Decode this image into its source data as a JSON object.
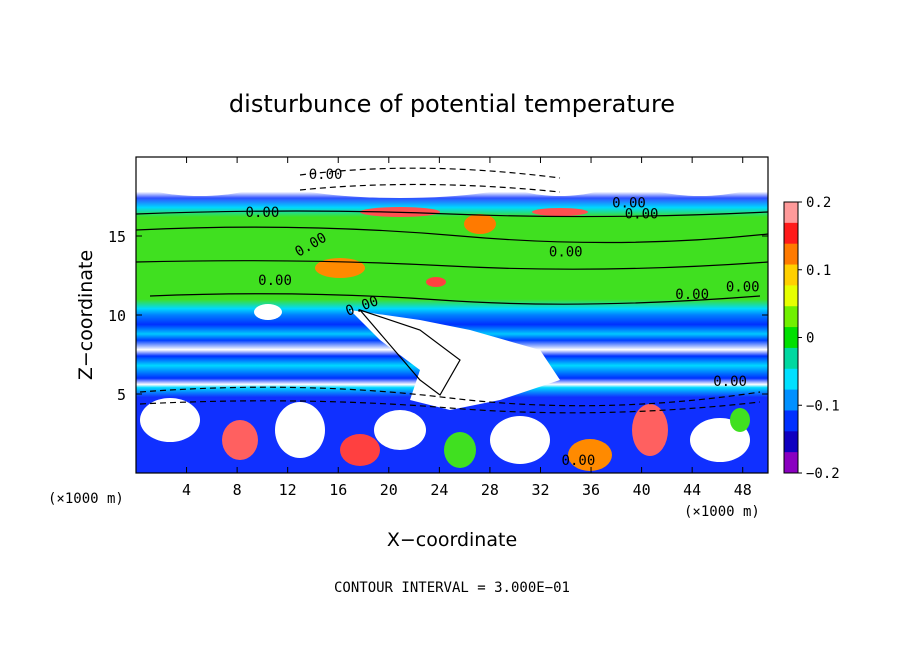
{
  "chart_data": {
    "type": "heatmap",
    "title": "disturbunce of potential temperature",
    "xlabel": "X−coordinate",
    "ylabel": "Z−coordinate",
    "x_unit": "(×1000 m)",
    "z_unit": "(×1000 m)",
    "xlim": [
      0,
      50
    ],
    "zlim": [
      0,
      20
    ],
    "x_ticks": [
      4,
      8,
      12,
      16,
      20,
      24,
      28,
      32,
      36,
      40,
      44,
      48
    ],
    "z_ticks": [
      5,
      10,
      15
    ],
    "colorbar": {
      "ticks": [
        {
          "value": 0.2,
          "label": "0.2"
        },
        {
          "value": 0.1,
          "label": "0.1"
        },
        {
          "value": 0,
          "label": "0"
        },
        {
          "value": -0.1,
          "label": "−0.1"
        },
        {
          "value": -0.2,
          "label": "−0.2"
        }
      ],
      "range": [
        -0.2,
        0.2
      ],
      "colors": [
        "#ff9a9a",
        "#ff1a1a",
        "#ff7a00",
        "#ffd000",
        "#e6ff00",
        "#70f000",
        "#00e000",
        "#00d8a0",
        "#00e0ff",
        "#0090ff",
        "#0030ff",
        "#1000c0",
        "#8a00c0"
      ]
    },
    "contour_label": "0.00",
    "contour_interval": "CONTOUR INTERVAL = 3.000E−01"
  }
}
